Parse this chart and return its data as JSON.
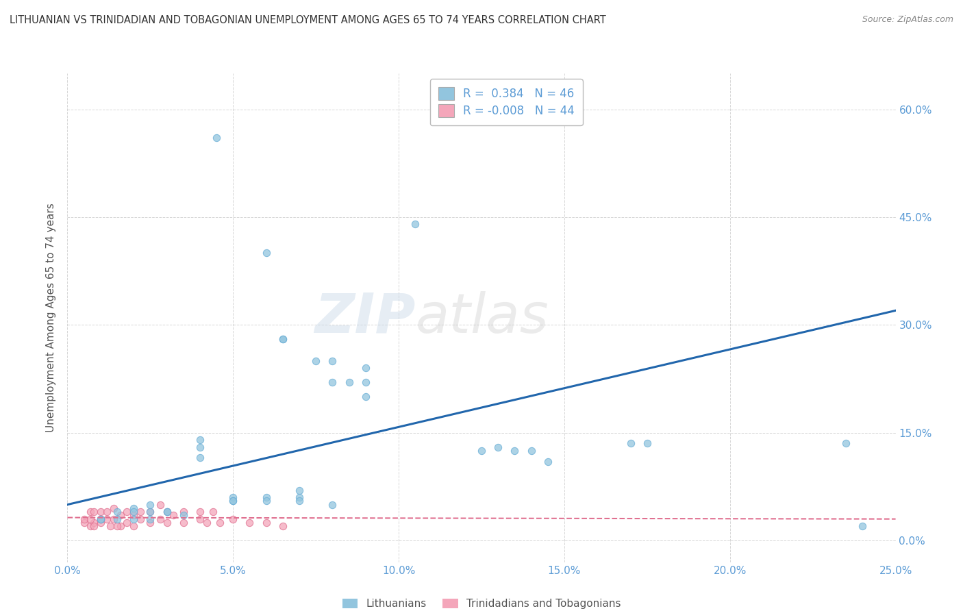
{
  "title": "LITHUANIAN VS TRINIDADIAN AND TOBAGONIAN UNEMPLOYMENT AMONG AGES 65 TO 74 YEARS CORRELATION CHART",
  "source": "Source: ZipAtlas.com",
  "xlabel_ticks": [
    "0.0%",
    "5.0%",
    "10.0%",
    "15.0%",
    "20.0%",
    "25.0%"
  ],
  "ylabel_ticks": [
    "0.0%",
    "15.0%",
    "30.0%",
    "45.0%",
    "60.0%"
  ],
  "ylabel_label": "Unemployment Among Ages 65 to 74 years",
  "legend_label1": "Lithuanians",
  "legend_label2": "Trinidadians and Tobagonians",
  "R1": 0.384,
  "N1": 46,
  "R2": -0.008,
  "N2": 44,
  "xlim": [
    0.0,
    0.25
  ],
  "ylim": [
    -0.03,
    0.65
  ],
  "blue_color": "#92C5DE",
  "pink_color": "#F4A6BA",
  "blue_scatter_edge": "#6aaed6",
  "pink_scatter_edge": "#e07090",
  "blue_line_color": "#2166ac",
  "pink_line_color": "#e07090",
  "watermark_zip": "ZIP",
  "watermark_atlas": "atlas",
  "grid_color": "#cccccc",
  "background_color": "#ffffff",
  "title_color": "#333333",
  "axis_color": "#5b9bd5",
  "blue_scatter_x": [
    0.045,
    0.105,
    0.06,
    0.065,
    0.065,
    0.075,
    0.08,
    0.08,
    0.085,
    0.09,
    0.09,
    0.09,
    0.04,
    0.04,
    0.04,
    0.05,
    0.05,
    0.05,
    0.06,
    0.06,
    0.07,
    0.07,
    0.07,
    0.08,
    0.02,
    0.025,
    0.025,
    0.03,
    0.03,
    0.035,
    0.01,
    0.01,
    0.015,
    0.015,
    0.02,
    0.17,
    0.175,
    0.125,
    0.13,
    0.135,
    0.14,
    0.145,
    0.235,
    0.24,
    0.02,
    0.025
  ],
  "blue_scatter_y": [
    0.56,
    0.44,
    0.4,
    0.28,
    0.28,
    0.25,
    0.25,
    0.22,
    0.22,
    0.24,
    0.22,
    0.2,
    0.14,
    0.13,
    0.115,
    0.06,
    0.055,
    0.055,
    0.06,
    0.055,
    0.06,
    0.055,
    0.07,
    0.05,
    0.045,
    0.04,
    0.05,
    0.04,
    0.04,
    0.035,
    0.03,
    0.03,
    0.03,
    0.04,
    0.04,
    0.135,
    0.135,
    0.125,
    0.13,
    0.125,
    0.125,
    0.11,
    0.135,
    0.02,
    0.03,
    0.03
  ],
  "pink_scatter_x": [
    0.005,
    0.005,
    0.007,
    0.007,
    0.008,
    0.008,
    0.01,
    0.01,
    0.01,
    0.012,
    0.012,
    0.014,
    0.014,
    0.016,
    0.016,
    0.018,
    0.018,
    0.02,
    0.02,
    0.022,
    0.022,
    0.025,
    0.025,
    0.028,
    0.028,
    0.03,
    0.03,
    0.032,
    0.035,
    0.035,
    0.04,
    0.04,
    0.042,
    0.044,
    0.046,
    0.05,
    0.055,
    0.06,
    0.065,
    0.007,
    0.008,
    0.01,
    0.013,
    0.015
  ],
  "pink_scatter_y": [
    0.025,
    0.03,
    0.02,
    0.04,
    0.025,
    0.04,
    0.025,
    0.03,
    0.04,
    0.03,
    0.04,
    0.03,
    0.045,
    0.02,
    0.035,
    0.025,
    0.04,
    0.02,
    0.035,
    0.03,
    0.04,
    0.025,
    0.04,
    0.03,
    0.05,
    0.025,
    0.04,
    0.035,
    0.025,
    0.04,
    0.03,
    0.04,
    0.025,
    0.04,
    0.025,
    0.03,
    0.025,
    0.025,
    0.02,
    0.03,
    0.02,
    0.03,
    0.02,
    0.02
  ],
  "blue_line_x": [
    0.0,
    0.25
  ],
  "blue_line_y": [
    0.05,
    0.32
  ],
  "pink_line_x": [
    0.0,
    0.25
  ],
  "pink_line_y": [
    0.032,
    0.03
  ],
  "ylabel_ticks_vals": [
    0.0,
    0.15,
    0.3,
    0.45,
    0.6
  ],
  "xtick_vals": [
    0.0,
    0.05,
    0.1,
    0.15,
    0.2,
    0.25
  ]
}
